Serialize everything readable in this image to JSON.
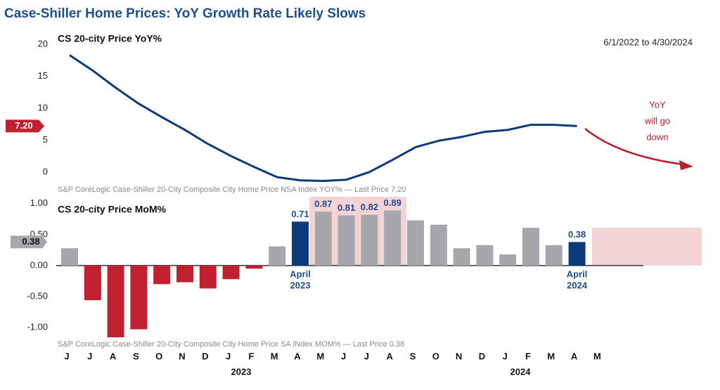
{
  "header": {
    "title": "Case-Shiller Home Prices: YoY Growth Rate Likely Slows",
    "date_range": "6/1/2022 to 4/30/2024",
    "annotation": [
      "YoY",
      "will go",
      "down"
    ]
  },
  "chart_data": [
    {
      "type": "line",
      "title": "CS 20-city Price YoY%",
      "source": "S&P CoreLogic Case-Shiller 20-City Composite City Home Price NSA Index YOY% — Last Price 7.20",
      "color": "#0d3b7a",
      "ylim": [
        -2,
        21
      ],
      "yticks": [
        20,
        15,
        10,
        5,
        0
      ],
      "values": [
        18.3,
        15.9,
        13.2,
        10.7,
        8.6,
        6.6,
        4.4,
        2.5,
        0.8,
        -0.8,
        -1.3,
        -1.4,
        -1.2,
        0,
        1.9,
        3.9,
        4.9,
        5.5,
        6.3,
        6.6,
        7.4,
        7.4,
        7.2,
        null
      ],
      "last_value": 7.2,
      "last_label": "7.20",
      "last_color": "#c0202f"
    },
    {
      "type": "bar",
      "title": "CS 20-city Price MoM%",
      "source": "S&P CoreLogic Case-Shiller 20-City Composite City Home Price SA INdex MOM% — Last Price 0.38",
      "categories": [
        "J",
        "J",
        "A",
        "S",
        "O",
        "N",
        "D",
        "J",
        "F",
        "M",
        "A",
        "M",
        "J",
        "J",
        "A",
        "S",
        "O",
        "N",
        "D",
        "J",
        "F",
        "M",
        "A",
        "M"
      ],
      "years": [
        "2023",
        "2024"
      ],
      "values": [
        0.28,
        -0.56,
        -1.16,
        -1.03,
        -0.3,
        -0.27,
        -0.37,
        -0.22,
        -0.05,
        0.31,
        0.71,
        0.87,
        0.81,
        0.82,
        0.89,
        0.73,
        0.66,
        0.28,
        0.33,
        0.18,
        0.61,
        0.33,
        0.38,
        null
      ],
      "value_labels": [
        null,
        null,
        null,
        null,
        null,
        null,
        null,
        null,
        null,
        null,
        "0.71",
        "0.87",
        "0.81",
        "0.82",
        "0.89",
        null,
        null,
        null,
        null,
        null,
        null,
        null,
        "0.38",
        null
      ],
      "colors": [
        "#a7a7ab",
        "#c0202f",
        "#c0202f",
        "#c0202f",
        "#c0202f",
        "#c0202f",
        "#c0202f",
        "#c0202f",
        "#c0202f",
        "#a7a7ab",
        "#0d3b7a",
        "#a7a7ab",
        "#a7a7ab",
        "#a7a7ab",
        "#a7a7ab",
        "#a7a7ab",
        "#a7a7ab",
        "#a7a7ab",
        "#a7a7ab",
        "#a7a7ab",
        "#a7a7ab",
        "#a7a7ab",
        "#0d3b7a",
        null
      ],
      "annotations": [
        [
          "April",
          "2023"
        ],
        [
          "April",
          "2024"
        ]
      ],
      "ylim": [
        -1.2,
        1.1
      ],
      "yticks": [
        {
          "value": 1,
          "label": "1.00"
        },
        {
          "value": 0.5,
          "label": "0.50"
        },
        {
          "value": 0,
          "label": "0.00"
        },
        {
          "value": -0.5,
          "label": "-0.50"
        },
        {
          "value": -1,
          "label": "-1.00"
        }
      ],
      "last_value": 0.38,
      "last_label": "0.38",
      "last_color": "#a7a7ab"
    }
  ]
}
